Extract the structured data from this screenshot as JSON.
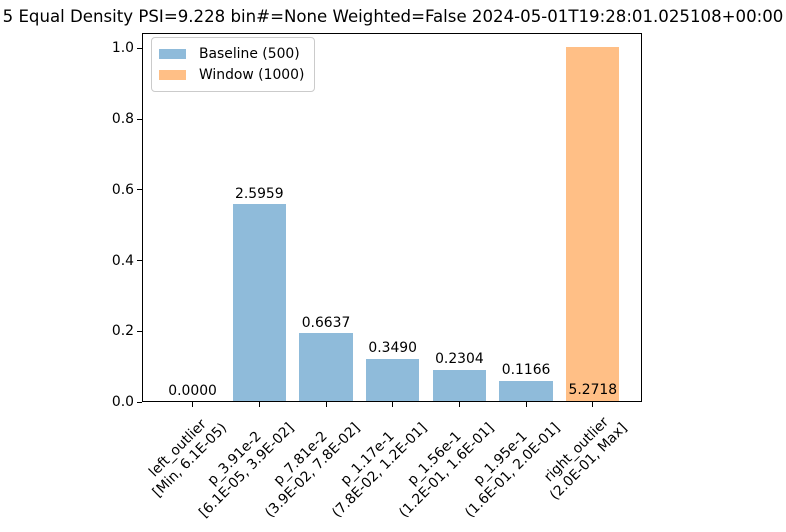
{
  "chart_data": {
    "type": "bar",
    "title": "5 Equal Density PSI=9.228 bin#=None Weighted=False 2024-05-01T19:28:01.025108+00:00",
    "categories": [
      "left_outlier\n[Min, 6.1E-05)",
      "p_3.91e-2\n[6.1E-05, 3.9E-02]",
      "p_7.81e-2\n(3.9E-02, 7.8E-02]",
      "p_1.17e-1\n(7.8E-02, 1.2E-01]",
      "p_1.56e-1\n(1.2E-01, 1.6E-01]",
      "p_1.95e-1\n(1.6E-01, 2.0E-01]",
      "right_outlier\n(2.0E-01, Max]"
    ],
    "series": [
      {
        "name": "Baseline (500)",
        "color": "#8fbbda",
        "heights": [
          0,
          0.556,
          0.191,
          0.12,
          0.088,
          0.058,
          0
        ]
      },
      {
        "name": "Window (1000)",
        "color": "#ffbf86",
        "heights": [
          0,
          0,
          0,
          0,
          0,
          0,
          1.0
        ]
      }
    ],
    "bar_labels": [
      "0.0000",
      "2.5959",
      "0.6637",
      "0.3490",
      "0.2304",
      "0.1166",
      "5.2718"
    ],
    "yticks": [
      "0.0",
      "0.2",
      "0.4",
      "0.6",
      "0.8",
      "1.0"
    ],
    "ytick_values": [
      0,
      0.2,
      0.4,
      0.6,
      0.8,
      1.0
    ],
    "ylim": [
      0,
      1.043
    ],
    "xtick_rotation": 45,
    "grid": false,
    "legend_position": "upper left"
  },
  "legend": {
    "items": [
      {
        "label": "Baseline (500)",
        "color": "#8fbbda"
      },
      {
        "label": "Window (1000)",
        "color": "#ffbf86"
      }
    ]
  }
}
